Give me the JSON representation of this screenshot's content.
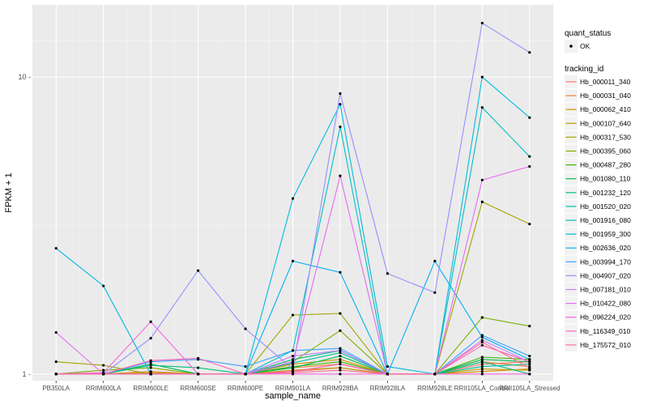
{
  "chart_data": {
    "type": "line",
    "xlabel": "sample_name",
    "ylabel": "FPKM + 1",
    "y_scale": "log10",
    "ylim": [
      0.95,
      17.5
    ],
    "y_ticks": [
      1,
      10
    ],
    "y_tick_labels": [
      "1 -",
      "10 -"
    ],
    "grid": true,
    "categories": [
      "PB350LA",
      "RRIM600LA",
      "RRIM600LE",
      "RRIM600SE",
      "RRIM600PE",
      "RRIM901LA",
      "RRIM928BA",
      "RRIM928LA",
      "RRIM928LE",
      "RRII105LA_Control",
      "RRII105LA_Stressed"
    ],
    "legend_quant": {
      "title": "quant_status",
      "items": [
        "OK"
      ]
    },
    "legend_tracking_title": "tracking_id",
    "series": [
      {
        "name": "Hb_000011_340",
        "color": "#F8766D",
        "values": [
          1.0,
          1.0,
          1.0,
          1.0,
          1.0,
          1.02,
          1.05,
          1.0,
          1.0,
          1.08,
          1.1
        ]
      },
      {
        "name": "Hb_000031_040",
        "color": "#EA8331",
        "values": [
          1.0,
          1.0,
          1.02,
          1.0,
          1.0,
          1.05,
          1.08,
          1.0,
          1.0,
          1.1,
          1.06
        ]
      },
      {
        "name": "Hb_000062_410",
        "color": "#D89000",
        "values": [
          1.0,
          1.0,
          1.0,
          1.0,
          1.0,
          1.08,
          1.12,
          1.0,
          1.0,
          1.02,
          1.04
        ]
      },
      {
        "name": "Hb_000107_640",
        "color": "#C09B00",
        "values": [
          1.0,
          1.0,
          1.01,
          1.0,
          1.0,
          1.03,
          1.05,
          1.0,
          1.0,
          1.04,
          1.03
        ]
      },
      {
        "name": "Hb_000317_530",
        "color": "#A3A500",
        "values": [
          1.1,
          1.07,
          1.0,
          1.0,
          1.0,
          1.58,
          1.6,
          1.0,
          1.0,
          3.8,
          3.2
        ]
      },
      {
        "name": "Hb_000395_060",
        "color": "#7CAE00",
        "values": [
          1.0,
          1.03,
          1.05,
          1.0,
          1.0,
          1.1,
          1.4,
          1.0,
          1.0,
          1.55,
          1.45
        ]
      },
      {
        "name": "Hb_000487_280",
        "color": "#39B600",
        "values": [
          1.0,
          1.0,
          1.0,
          1.0,
          1.0,
          1.06,
          1.1,
          1.0,
          1.0,
          1.14,
          1.12
        ]
      },
      {
        "name": "Hb_001080_110",
        "color": "#00BB4E",
        "values": [
          1.0,
          1.0,
          1.08,
          1.0,
          1.0,
          1.05,
          1.15,
          1.0,
          1.0,
          1.12,
          1.1
        ]
      },
      {
        "name": "Hb_001232_120",
        "color": "#00BF7D",
        "values": [
          1.0,
          1.0,
          1.07,
          1.05,
          1.0,
          1.12,
          1.2,
          1.0,
          1.0,
          1.1,
          1.0
        ]
      },
      {
        "name": "Hb_001520_020",
        "color": "#00C1A3",
        "values": [
          1.0,
          1.0,
          1.0,
          1.0,
          1.0,
          1.09,
          1.18,
          1.0,
          1.0,
          1.06,
          1.08
        ]
      },
      {
        "name": "Hb_001916_080",
        "color": "#00BFC4",
        "values": [
          1.0,
          1.0,
          1.0,
          1.0,
          1.0,
          1.2,
          6.8,
          1.0,
          1.0,
          7.9,
          5.4
        ]
      },
      {
        "name": "Hb_001959_300",
        "color": "#00BAE0",
        "values": [
          2.65,
          1.98,
          1.0,
          1.0,
          1.0,
          3.9,
          8.1,
          1.06,
          1.0,
          10.0,
          7.3
        ]
      },
      {
        "name": "Hb_002636_020",
        "color": "#00B0F6",
        "values": [
          1.0,
          1.0,
          1.0,
          1.0,
          1.0,
          2.4,
          2.2,
          1.0,
          2.4,
          1.33,
          1.12
        ]
      },
      {
        "name": "Hb_003994_170",
        "color": "#35A2FF",
        "values": [
          1.0,
          1.0,
          1.1,
          1.12,
          1.06,
          1.2,
          1.22,
          1.0,
          1.0,
          1.35,
          1.15
        ]
      },
      {
        "name": "Hb_004907_020",
        "color": "#9590FF",
        "values": [
          1.0,
          1.0,
          1.32,
          2.23,
          1.42,
          1.04,
          8.8,
          2.18,
          1.88,
          15.2,
          12.1
        ]
      },
      {
        "name": "Hb_007181_010",
        "color": "#C77CFF",
        "values": [
          1.0,
          1.0,
          1.0,
          1.0,
          1.0,
          1.15,
          1.2,
          1.0,
          1.0,
          1.3,
          1.1
        ]
      },
      {
        "name": "Hb_010422_080",
        "color": "#E76BF3",
        "values": [
          1.38,
          1.0,
          1.0,
          1.0,
          1.0,
          1.1,
          4.65,
          1.0,
          1.0,
          4.5,
          5.0
        ]
      },
      {
        "name": "Hb_096224_020",
        "color": "#FA62DB",
        "values": [
          1.0,
          1.01,
          1.5,
          1.0,
          1.0,
          1.0,
          1.0,
          1.0,
          1.0,
          1.0,
          1.0
        ]
      },
      {
        "name": "Hb_116349_010",
        "color": "#FF62BC",
        "values": [
          1.0,
          1.0,
          1.11,
          1.13,
          1.0,
          1.02,
          1.08,
          1.0,
          1.0,
          1.25,
          1.1
        ]
      },
      {
        "name": "Hb_175572_010",
        "color": "#FF6C91",
        "values": [
          1.0,
          1.0,
          1.0,
          1.0,
          1.0,
          1.01,
          1.03,
          1.0,
          1.0,
          1.28,
          1.05
        ]
      }
    ]
  }
}
